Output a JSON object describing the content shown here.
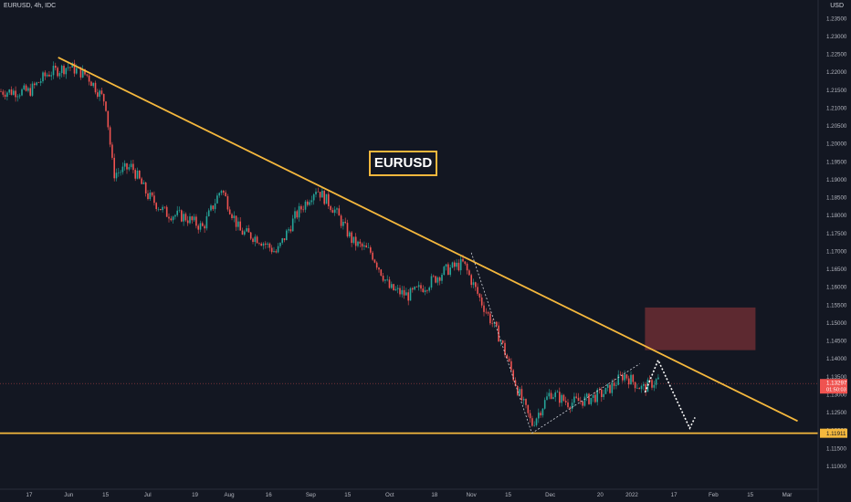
{
  "header": {
    "symbol": "EURUSD, 4h, IDC",
    "currency": "USD"
  },
  "annotation": "EURUSD",
  "colors": {
    "background": "#131722",
    "trendline": "#f5b83d",
    "up_candle": "#26a69a",
    "down_candle": "#ef5350",
    "zone": "#6b2d33",
    "price_tag": "#ef5350",
    "support_tag": "#f5b83d"
  },
  "chart_data": {
    "type": "candlestick",
    "title": "",
    "ylim": [
      1.105,
      1.238
    ],
    "y_ticks": [
      "1.23500",
      "1.23000",
      "1.22500",
      "1.22000",
      "1.21500",
      "1.21000",
      "1.20500",
      "1.20000",
      "1.19500",
      "1.19000",
      "1.18500",
      "1.18000",
      "1.17500",
      "1.17000",
      "1.16500",
      "1.16000",
      "1.15500",
      "1.15000",
      "1.14500",
      "1.14000",
      "1.13500",
      "1.13000",
      "1.12500",
      "1.12000",
      "1.11500",
      "1.11000"
    ],
    "x_ticks": [
      "17",
      "Jun",
      "15",
      "Jul",
      "19",
      "Aug",
      "16",
      "Sep",
      "15",
      "Oct",
      "18",
      "Nov",
      "15",
      "Dec",
      "20",
      "2022",
      "17",
      "Feb",
      "15",
      "Mar"
    ],
    "series": [
      {
        "x": [
          "2021-05-17",
          "2021-05-24",
          "2021-06-01",
          "2021-06-08",
          "2021-06-15",
          "2021-06-18",
          "2021-06-25",
          "2021-07-01",
          "2021-07-08",
          "2021-07-15",
          "2021-07-22",
          "2021-07-29",
          "2021-08-05",
          "2021-08-12",
          "2021-08-19",
          "2021-08-26",
          "2021-09-03",
          "2021-09-10",
          "2021-09-17",
          "2021-09-24",
          "2021-10-01",
          "2021-10-08",
          "2021-10-15",
          "2021-10-22",
          "2021-10-29",
          "2021-11-05",
          "2021-11-12",
          "2021-11-19",
          "2021-11-24",
          "2021-12-01",
          "2021-12-08",
          "2021-12-15",
          "2021-12-22",
          "2021-12-29",
          "2022-01-05",
          "2022-01-12"
        ],
        "close": [
          1.2145,
          1.2195,
          1.2215,
          1.219,
          1.2115,
          1.1915,
          1.1935,
          1.1855,
          1.1805,
          1.1795,
          1.1765,
          1.1875,
          1.1755,
          1.1735,
          1.1695,
          1.1795,
          1.1875,
          1.1815,
          1.1725,
          1.1695,
          1.1595,
          1.1575,
          1.1605,
          1.1645,
          1.1665,
          1.1555,
          1.1455,
          1.1305,
          1.1215,
          1.1305,
          1.1275,
          1.1285,
          1.1305,
          1.1355,
          1.1315,
          1.1345
        ]
      }
    ],
    "current_price": "1.13297",
    "price_tag_sub": "01:50:03",
    "support_price": "1.11911",
    "trendline_start": {
      "x": "2021-05-28",
      "y": 1.224
    },
    "trendline_end": {
      "x": "2022-03-05",
      "y": 1.1225
    },
    "support_level": 1.1191,
    "zone": {
      "x0": "2022-01-06",
      "x1": "2022-02-17",
      "y0": 1.1423,
      "y1": 1.1542
    }
  }
}
